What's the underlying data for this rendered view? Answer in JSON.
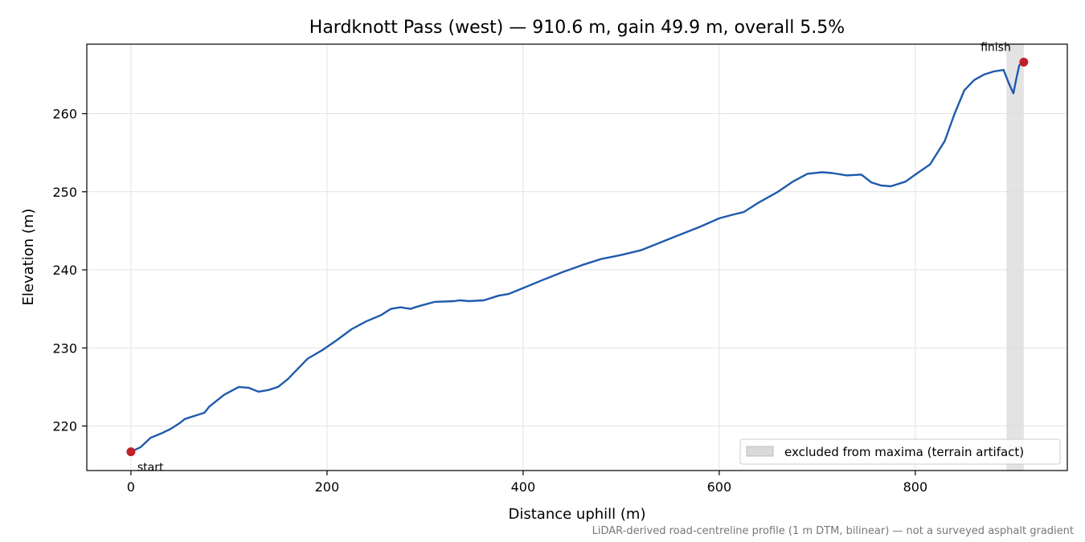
{
  "chart_data": {
    "type": "line",
    "title": "Hardknott Pass (west) — 910.6 m, gain 49.9 m, overall 5.5%",
    "xlabel": "Distance uphill (m)",
    "ylabel": "Elevation (m)",
    "xlim": [
      -45,
      955
    ],
    "ylim": [
      214.3,
      268.9
    ],
    "xticks": [
      0,
      200,
      400,
      600,
      800
    ],
    "yticks": [
      220,
      230,
      240,
      250,
      260
    ],
    "grid": true,
    "legend_position": "lower-right",
    "series": [
      {
        "name": "",
        "color": "#1f5aad",
        "x": [
          0,
          10,
          20,
          30,
          40,
          50,
          55,
          65,
          75,
          80,
          85,
          95,
          110,
          120,
          130,
          140,
          150,
          160,
          170,
          180,
          195,
          210,
          225,
          240,
          255,
          265,
          275,
          285,
          290,
          295,
          310,
          330,
          335,
          345,
          360,
          375,
          385,
          395,
          420,
          440,
          460,
          480,
          500,
          520,
          540,
          560,
          580,
          600,
          615,
          625,
          640,
          660,
          675,
          690,
          705,
          715,
          730,
          745,
          755,
          765,
          775,
          790,
          800,
          815,
          830,
          840,
          850,
          860,
          870,
          880,
          890,
          895,
          900,
          903,
          906,
          910.6
        ],
        "y": [
          216.7,
          217.3,
          218.5,
          219.0,
          219.6,
          220.4,
          220.9,
          221.3,
          221.7,
          222.5,
          223.0,
          224.0,
          225.0,
          224.9,
          224.4,
          224.6,
          225.0,
          226.0,
          227.3,
          228.6,
          229.7,
          231.0,
          232.4,
          233.4,
          234.2,
          235.0,
          235.2,
          235.0,
          235.2,
          235.4,
          235.9,
          236.0,
          236.1,
          236.0,
          236.1,
          236.7,
          236.9,
          237.4,
          238.7,
          239.7,
          240.6,
          241.4,
          241.9,
          242.5,
          243.5,
          244.5,
          245.5,
          246.6,
          247.1,
          247.4,
          248.6,
          250.0,
          251.3,
          252.3,
          252.5,
          252.4,
          252.1,
          252.2,
          251.2,
          250.8,
          250.7,
          251.3,
          252.2,
          253.5,
          256.5,
          260.0,
          263.0,
          264.3,
          265.0,
          265.4,
          265.6,
          264.0,
          262.6,
          264.5,
          266.2,
          266.6
        ]
      }
    ],
    "markers": [
      {
        "label": "start",
        "x": 0,
        "y": 216.7,
        "color": "#c0202a"
      },
      {
        "label": "finish",
        "x": 910.6,
        "y": 266.6,
        "color": "#c0202a"
      }
    ],
    "shaded_regions": [
      {
        "label": "excluded from maxima (terrain artifact)",
        "x_start": 893,
        "x_end": 910.6,
        "color": "#d9d9d9"
      }
    ],
    "footnote": "LiDAR-derived road-centreline profile (1 m DTM, bilinear) — not a surveyed asphalt gradient"
  }
}
